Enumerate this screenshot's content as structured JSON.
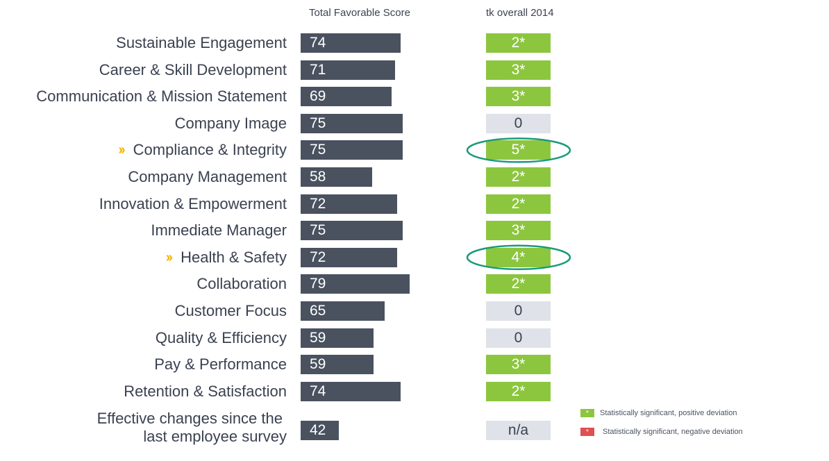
{
  "headers": {
    "score": "Total Favorable Score",
    "compare": "tk overall 2014"
  },
  "colors": {
    "bar": "#4a5260",
    "positive": "#8cc63f",
    "negative": "#e05050",
    "neutral": "#dfe2e8",
    "marker": "#f4b400",
    "highlight": "#1a9a7a"
  },
  "chart_data": {
    "type": "bar",
    "orientation": "horizontal",
    "title": "",
    "xlabel": "Total Favorable Score",
    "ylabel": "",
    "xlim": [
      0,
      100
    ],
    "categories": [
      "Sustainable Engagement",
      "Career & Skill Development",
      "Communication & Mission Statement",
      "Company Image",
      "Compliance & Integrity",
      "Company Management",
      "Innovation & Empowerment",
      "Immediate Manager",
      "Health & Safety",
      "Collaboration",
      "Customer Focus",
      "Quality & Efficiency",
      "Pay & Performance",
      "Retention & Satisfaction",
      "Effective changes since the last employee survey"
    ],
    "values": [
      74,
      71,
      69,
      75,
      75,
      58,
      72,
      75,
      72,
      79,
      65,
      59,
      59,
      74,
      42
    ],
    "comparison": {
      "name": "tk overall 2014",
      "values": [
        "2*",
        "3*",
        "3*",
        "0",
        "5*",
        "2*",
        "2*",
        "3*",
        "4*",
        "2*",
        "0",
        "0",
        "3*",
        "2*",
        "n/a"
      ],
      "status": [
        "pos",
        "pos",
        "pos",
        "neutral",
        "pos",
        "pos",
        "pos",
        "pos",
        "pos",
        "pos",
        "neutral",
        "neutral",
        "pos",
        "pos",
        "neutral"
      ]
    },
    "highlighted": [
      "Compliance & Integrity",
      "Health & Safety"
    ],
    "last_label_lines": [
      "Effective changes since the",
      "last employee survey"
    ]
  },
  "marker_glyph": "››",
  "legend": {
    "positive_label": "Statistically significant, positive deviation",
    "negative_label": "Statistically significant, negative deviation",
    "swatch_glyph": "*"
  }
}
